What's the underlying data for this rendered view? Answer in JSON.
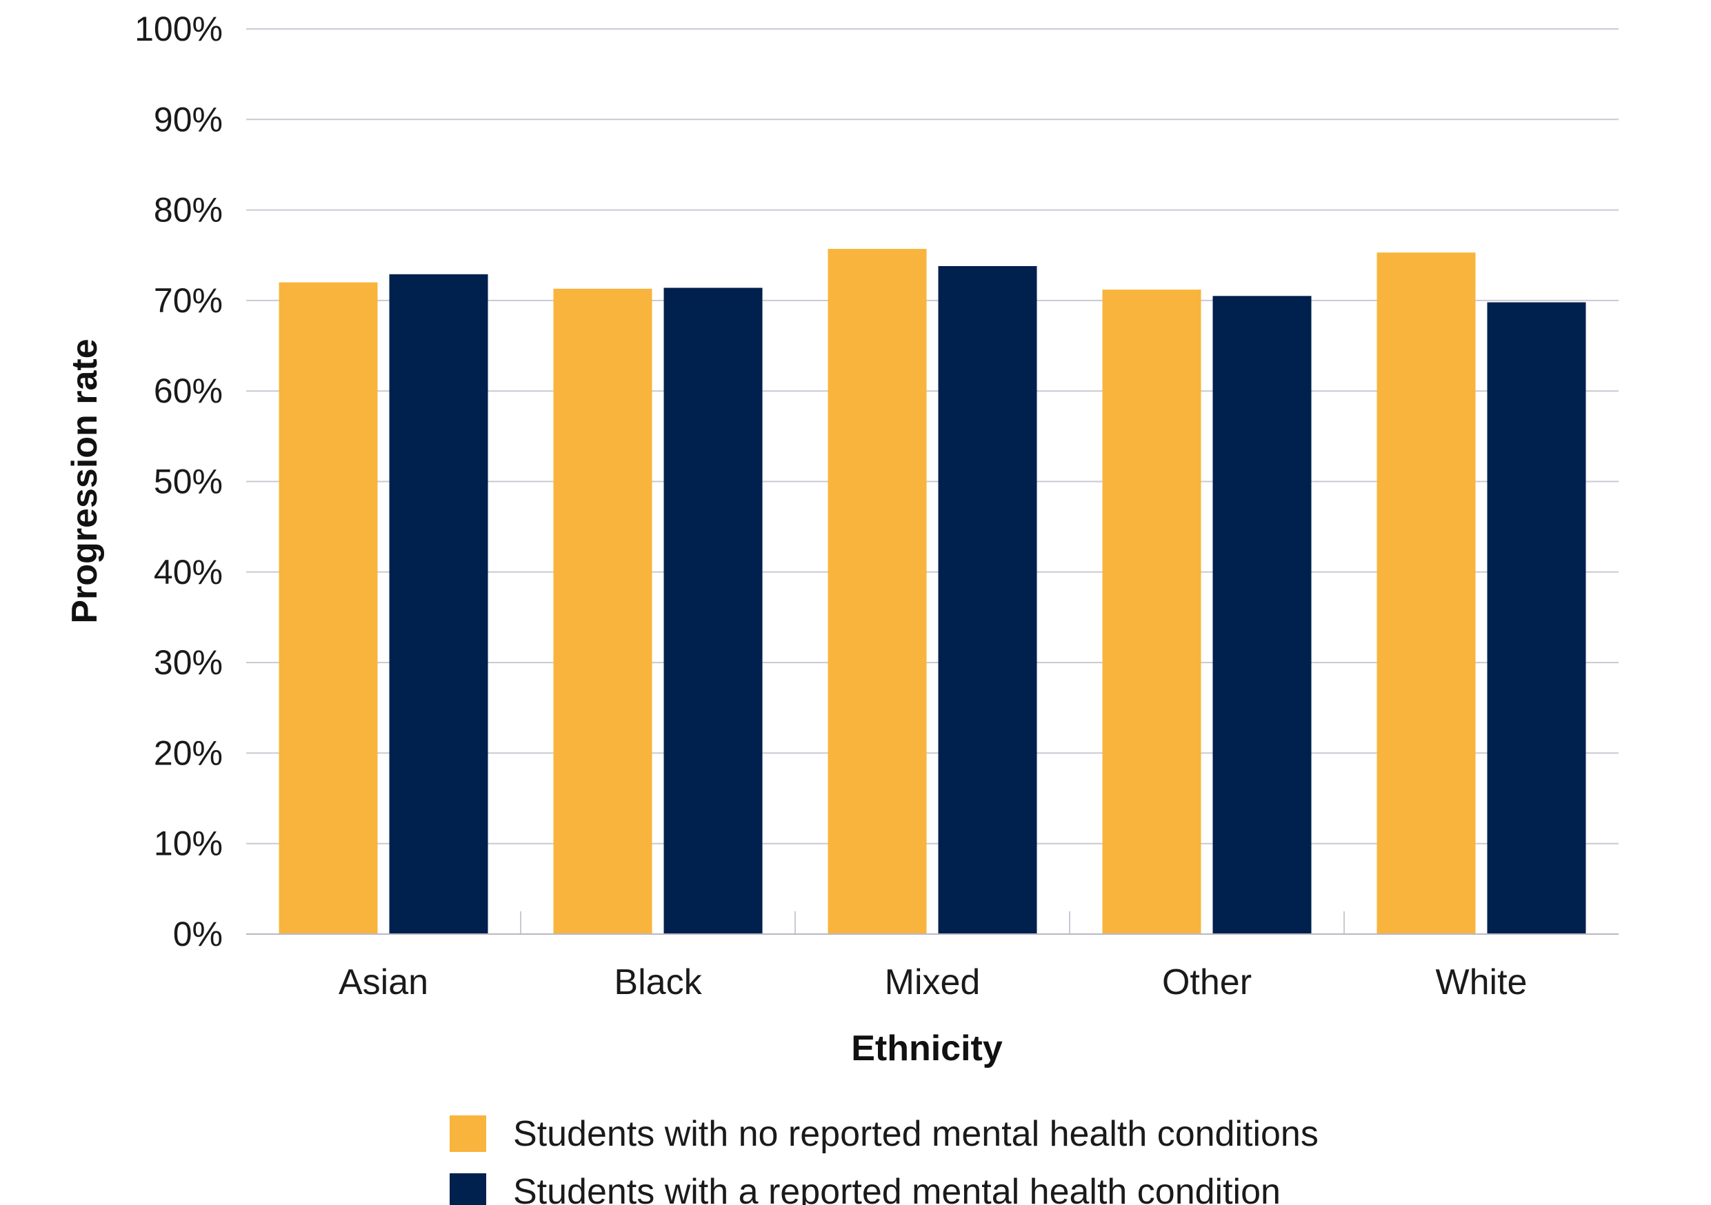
{
  "chart_data": {
    "type": "bar",
    "xlabel": "Ethnicity",
    "ylabel": "Progression rate",
    "categories": [
      "Asian",
      "Black",
      "Mixed",
      "Other",
      "White"
    ],
    "series": [
      {
        "name": "Students with no reported mental health conditions",
        "color": "#F8B43C",
        "values": [
          72.0,
          71.3,
          75.7,
          71.2,
          75.3
        ]
      },
      {
        "name": "Students with a reported mental health condition",
        "color": "#00204E",
        "values": [
          72.9,
          71.4,
          73.8,
          70.5,
          69.8
        ]
      }
    ],
    "ylim": [
      0,
      100
    ],
    "yticks": [
      "0%",
      "10%",
      "20%",
      "30%",
      "40%",
      "50%",
      "60%",
      "70%",
      "80%",
      "90%",
      "100%"
    ],
    "grid": true,
    "legend_position": "bottom"
  }
}
